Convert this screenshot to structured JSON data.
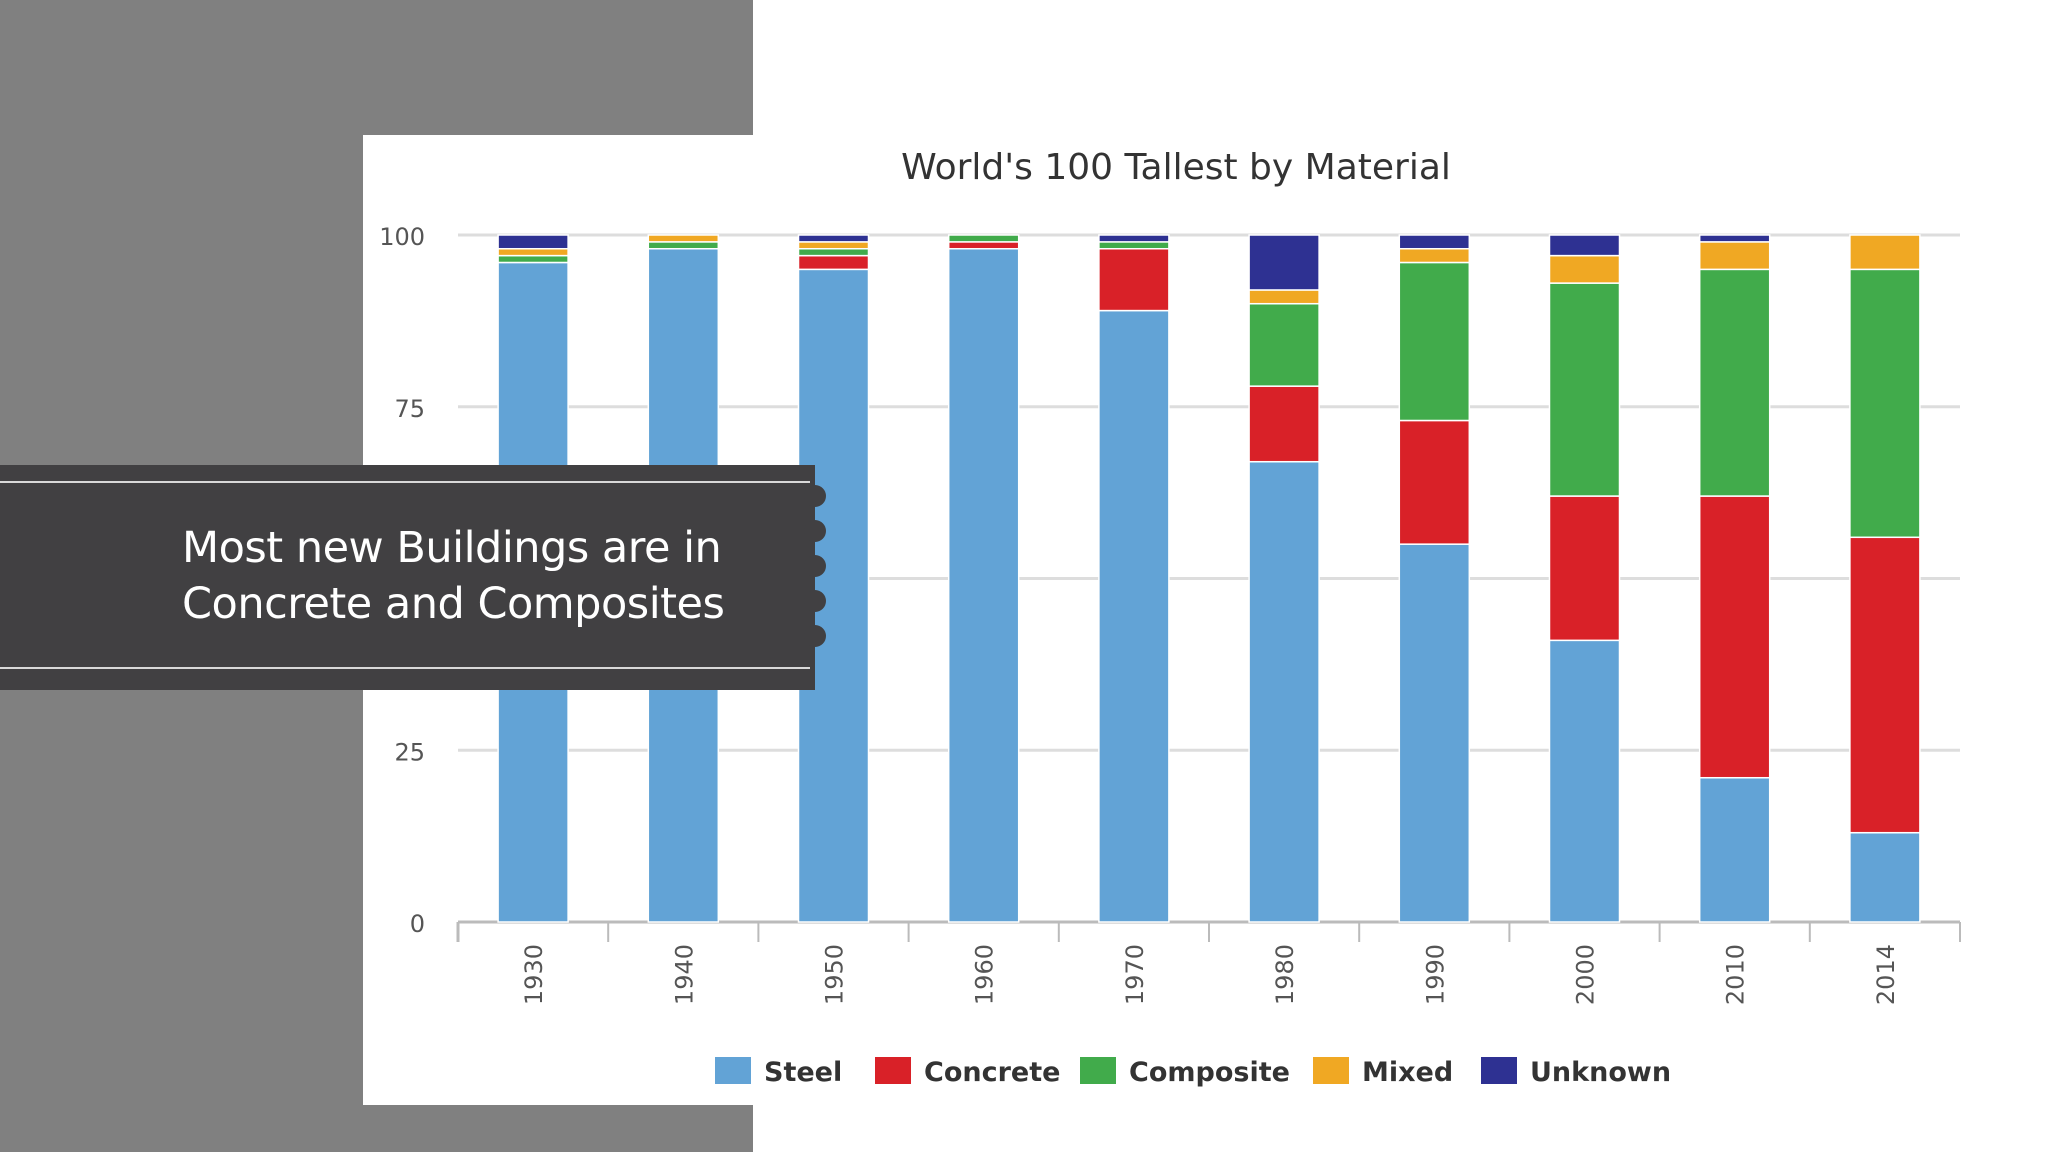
{
  "slide": {
    "callout_line1": "Most new Buildings are in",
    "callout_line2": "Concrete and Composites"
  },
  "chart_data": {
    "type": "bar",
    "stacked": true,
    "title": "World's 100 Tallest by Material",
    "xlabel": "",
    "ylabel": "",
    "ylim": [
      0,
      100
    ],
    "yticks": [
      0,
      25,
      75,
      100
    ],
    "grid": true,
    "legend_position": "bottom",
    "categories": [
      "1930",
      "1940",
      "1950",
      "1960",
      "1970",
      "1980",
      "1990",
      "2000",
      "2010",
      "2014"
    ],
    "series": [
      {
        "name": "Steel",
        "color": "#62a3d6",
        "values": [
          96,
          98,
          95,
          98,
          89,
          67,
          55,
          41,
          21,
          13
        ]
      },
      {
        "name": "Concrete",
        "color": "#d92128",
        "values": [
          0,
          0,
          2,
          1,
          9,
          11,
          18,
          21,
          41,
          43
        ]
      },
      {
        "name": "Composite",
        "color": "#41ab4b",
        "values": [
          1,
          1,
          1,
          1,
          1,
          12,
          23,
          31,
          33,
          39
        ]
      },
      {
        "name": "Mixed",
        "color": "#f0a823",
        "values": [
          1,
          1,
          1,
          0,
          0,
          2,
          2,
          4,
          4,
          5
        ]
      },
      {
        "name": "Unknown",
        "color": "#2e3192",
        "values": [
          2,
          0,
          1,
          0,
          1,
          8,
          2,
          3,
          1,
          0
        ]
      }
    ]
  }
}
